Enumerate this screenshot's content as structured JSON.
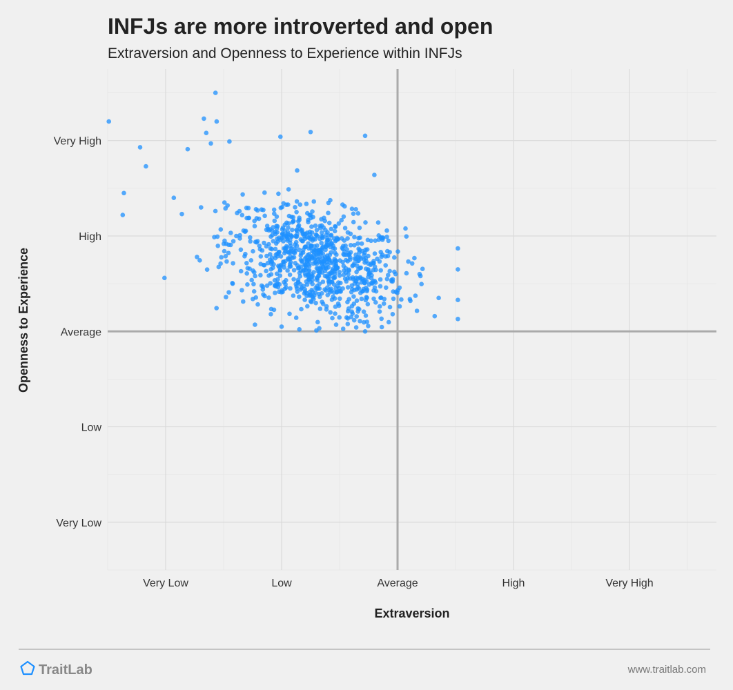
{
  "footer": {
    "brand": "TraitLab",
    "url": "www.traitlab.com",
    "logo_icon": "pentagon-icon",
    "logo_color": "#1e90ff"
  },
  "chart_data": {
    "type": "scatter",
    "title": "INFJs are more introverted and open",
    "subtitle": "Extraversion and Openness to Experience within INFJs",
    "xlabel": "Extraversion",
    "ylabel": "Openness to Experience",
    "x_ticks": [
      {
        "value": 1,
        "label": "Very Low"
      },
      {
        "value": 2,
        "label": "Low"
      },
      {
        "value": 3,
        "label": "Average"
      },
      {
        "value": 4,
        "label": "High"
      },
      {
        "value": 5,
        "label": "Very High"
      }
    ],
    "y_ticks": [
      {
        "value": 1,
        "label": "Very Low"
      },
      {
        "value": 2,
        "label": "Low"
      },
      {
        "value": 3,
        "label": "Average"
      },
      {
        "value": 4,
        "label": "High"
      },
      {
        "value": 5,
        "label": "Very High"
      }
    ],
    "xlim": [
      0.5,
      5.75
    ],
    "ylim": [
      0.5,
      5.75
    ],
    "reference_lines": {
      "x": 3,
      "y": 3
    },
    "grid": true,
    "point_color": "#1e90ff",
    "points": [
      [
        0.51,
        5.2
      ],
      [
        0.64,
        4.45
      ],
      [
        0.63,
        4.22
      ],
      [
        0.78,
        4.93
      ],
      [
        0.83,
        4.73
      ],
      [
        1.19,
        4.91
      ],
      [
        1.33,
        5.23
      ],
      [
        1.43,
        5.5
      ],
      [
        1.44,
        5.2
      ],
      [
        1.35,
        5.08
      ],
      [
        1.39,
        4.97
      ],
      [
        1.55,
        4.99
      ],
      [
        1.99,
        5.04
      ],
      [
        2.25,
        5.09
      ],
      [
        2.72,
        5.05
      ],
      [
        2.8,
        4.64
      ],
      [
        0.99,
        3.56
      ],
      [
        1.27,
        3.78
      ],
      [
        1.14,
        4.23
      ],
      [
        1.07,
        4.4
      ],
      [
        2.0,
        3.05
      ],
      [
        2.3,
        3.01
      ],
      [
        3.52,
        3.13
      ],
      [
        3.32,
        3.16
      ],
      [
        3.52,
        3.33
      ],
      [
        3.52,
        3.87
      ],
      [
        3.52,
        3.65
      ],
      [
        2.72,
        3.0
      ],
      [
        2.47,
        3.07
      ],
      [
        2.6,
        3.15
      ],
      [
        1.52,
        3.36
      ],
      [
        1.77,
        3.07
      ]
    ],
    "cloud": {
      "count": 880,
      "x_mean": 2.3,
      "x_sd": 0.38,
      "y_mean": 3.72,
      "y_sd": 0.3,
      "correlation": -0.35,
      "x_range": [
        1.25,
        3.48
      ],
      "y_range": [
        3.02,
        5.05
      ]
    }
  }
}
